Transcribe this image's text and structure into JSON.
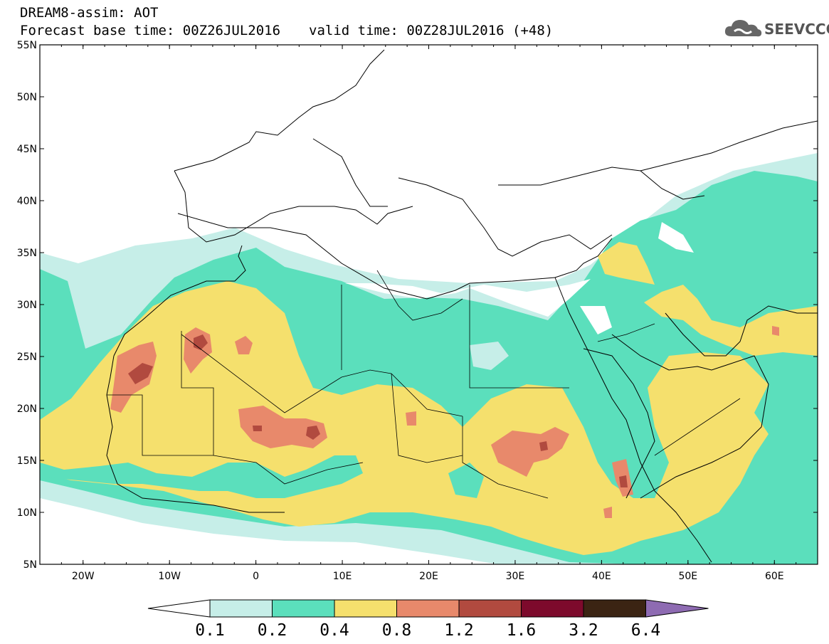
{
  "header": {
    "line1": "DREAM8-assim: AOT",
    "base": "Forecast base time: 00Z26JUL2016",
    "valid": "valid time: 00Z28JUL2016 (+48)",
    "logo_text": "SEEVCCC"
  },
  "map": {
    "lat_ticks": [
      "55N",
      "50N",
      "45N",
      "40N",
      "35N",
      "30N",
      "25N",
      "20N",
      "15N",
      "10N",
      "5N"
    ],
    "lon_ticks": [
      "20W",
      "10W",
      "0",
      "10E",
      "20E",
      "30E",
      "40E",
      "50E",
      "60E"
    ],
    "lon_range": [
      -25,
      65
    ],
    "lat_range": [
      5,
      55
    ]
  },
  "colorbar": {
    "labels": [
      "0.1",
      "0.2",
      "0.4",
      "0.8",
      "1.2",
      "1.6",
      "3.2",
      "6.4"
    ],
    "colors": [
      "#ffffff",
      "#c6eee8",
      "#5bdfbc",
      "#f5e06d",
      "#e8896b",
      "#b14a3f",
      "#7d0a2c",
      "#3b2413",
      "#8e6bb2"
    ]
  }
}
